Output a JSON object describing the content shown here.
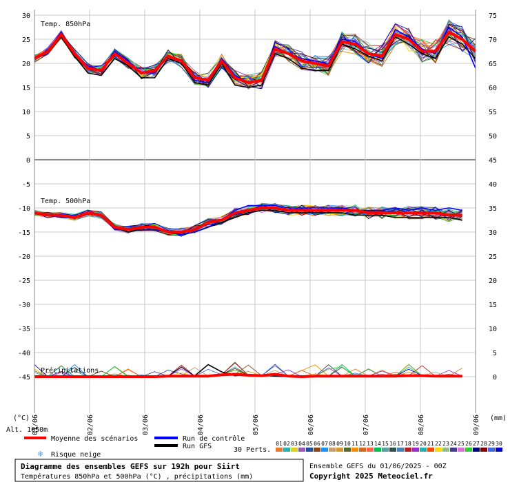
{
  "chart_data": {
    "type": "line",
    "title": "Diagramme des ensembles GEFS sur 192h pour Siirt",
    "subtitle": "Températures 850hPa et 500hPa (°C) , précipitations (mm)",
    "left_axis_unit": "(°C)",
    "right_axis_unit": "(mm)",
    "left_ticks": [
      30,
      25,
      20,
      15,
      10,
      5,
      0,
      -5,
      -10,
      -15,
      -20,
      -25,
      -30,
      -35,
      -40,
      -45
    ],
    "right_ticks": [
      75,
      70,
      65,
      60,
      55,
      50,
      45,
      40,
      35,
      30,
      25,
      20,
      15,
      10,
      5,
      0
    ],
    "ylim": [
      -52,
      30
    ],
    "x_labels": [
      "01/06",
      "02/06",
      "03/06",
      "04/06",
      "05/06",
      "06/06",
      "07/06",
      "08/06",
      "09/06"
    ],
    "panel_labels": {
      "t850": "Temp. 850hPa",
      "t500": "Temp. 500hPa",
      "precip": "Précipitations"
    },
    "altitude": "Alt. 1050m",
    "series": [
      {
        "name": "Moyenne des scénarios",
        "color": "#ff0000",
        "t850": [
          21,
          22.5,
          26,
          22,
          19,
          18.5,
          22,
          20,
          18,
          18.5,
          21.5,
          20.5,
          17,
          16.5,
          20.5,
          17,
          16,
          16.5,
          23,
          22,
          20.5,
          20,
          19.5,
          24.5,
          24,
          22,
          21.5,
          26,
          25,
          22.5,
          22.5,
          26.5,
          25,
          22.5
        ],
        "t500": [
          -11,
          -11.5,
          -11.5,
          -12,
          -11,
          -11.5,
          -14,
          -14.5,
          -14,
          -14,
          -15,
          -15,
          -14.5,
          -13,
          -12.5,
          -11,
          -10.5,
          -10,
          -10,
          -10.5,
          -10.5,
          -10.5,
          -10.5,
          -10.5,
          -10.5,
          -11,
          -11,
          -11,
          -11,
          -11,
          -11,
          -11.5,
          -11.5
        ],
        "precip": [
          0,
          0,
          0,
          0,
          0,
          0,
          0,
          0,
          0,
          0,
          0.1,
          0.1,
          0.1,
          0.1,
          0.4,
          0.5,
          0.3,
          0.2,
          0.5,
          0.1,
          0,
          0.1,
          0.1,
          0.1,
          0.1,
          0.1,
          0.1,
          0.1,
          0.2,
          0.2,
          0.1,
          0.1,
          0.1
        ]
      },
      {
        "name": "Run de contrôle",
        "color": "#0000ff",
        "t850": [
          21,
          22.5,
          26.5,
          22,
          19.5,
          18.5,
          22.5,
          20.5,
          18,
          18,
          21.5,
          20.5,
          16.5,
          16,
          21,
          17.5,
          16,
          16.5,
          23.5,
          22,
          21,
          20.5,
          20,
          25,
          24.5,
          22,
          21,
          27,
          25.5,
          23,
          22,
          27.5,
          25.5,
          19
        ],
        "t500": [
          -11,
          -11.5,
          -12,
          -12,
          -11,
          -11.5,
          -14.5,
          -14.5,
          -14.5,
          -14.5,
          -15,
          -15.5,
          -15,
          -14,
          -12.5,
          -10.5,
          -9.5,
          -9.5,
          -9.5,
          -10,
          -10,
          -10,
          -10,
          -10,
          -10.5,
          -10.5,
          -10.5,
          -10,
          -10.5,
          -10,
          -10.5,
          -10,
          -10.5
        ]
      },
      {
        "name": "Run GFS",
        "color": "#000000",
        "t850": [
          21,
          22.5,
          25.5,
          21.5,
          18,
          17.5,
          21,
          19.5,
          17,
          17,
          21,
          20,
          16,
          15.5,
          20,
          15.5,
          15,
          15.5,
          22,
          21,
          19,
          18.5,
          18.5,
          24,
          23,
          21.5,
          20.5,
          25.5,
          24,
          22,
          21,
          25.5,
          24,
          21
        ],
        "t500": [
          -11,
          -11.5,
          -11.5,
          -12,
          -11,
          -11.5,
          -14,
          -15,
          -14.5,
          -14.5,
          -15,
          -15.5,
          -15,
          -14,
          -13,
          -12,
          -11,
          -10.5,
          -10.5,
          -11,
          -11,
          -11,
          -11,
          -11,
          -11.5,
          -11.5,
          -11.5,
          -12,
          -12,
          -12,
          -12,
          -12,
          -12.5
        ],
        "precip": [
          0,
          0,
          0,
          0,
          0,
          0,
          0,
          0,
          0,
          0,
          0.1,
          0.2,
          0.2,
          2.5,
          1,
          0.2,
          0.4,
          0.3,
          0.1,
          0,
          0,
          0,
          0,
          0,
          0,
          0,
          0,
          0,
          0.3,
          0.2,
          0,
          0,
          0.1
        ]
      }
    ],
    "legend": {
      "mean": "Moyenne des scénarios",
      "control": "Run de contrôle",
      "gfs": "Run GFS",
      "snow": "Risque neige",
      "perts": "30 Perts.",
      "pert_labels": [
        "01",
        "02",
        "03",
        "04",
        "05",
        "06",
        "07",
        "08",
        "09",
        "10",
        "11",
        "12",
        "13",
        "14",
        "15",
        "16",
        "17",
        "18",
        "19",
        "20",
        "21",
        "22",
        "23",
        "24",
        "25",
        "26",
        "27",
        "28",
        "29",
        "30"
      ],
      "pert_colors": [
        "#e97a2e",
        "#2db0b0",
        "#e0d020",
        "#9b59b6",
        "#1f4e9c",
        "#8b4513",
        "#1e90ff",
        "#c8a070",
        "#d49a30",
        "#556b2f",
        "#ff8c00",
        "#d2691e",
        "#ff6347",
        "#00c050",
        "#5f9ea0",
        "#2f4f4f",
        "#4682b4",
        "#b22222",
        "#9932cc",
        "#20b2aa",
        "#ff4500",
        "#ffd700",
        "#8fbc8f",
        "#483d8b",
        "#da70d6",
        "#32cd32",
        "#000080",
        "#800000",
        "#4169e1",
        "#0000cd"
      ]
    },
    "footer": {
      "ensemble": "Ensemble GEFS du 01/06/2025 - 00Z",
      "copyright": "Copyright 2025 Meteociel.fr"
    }
  }
}
